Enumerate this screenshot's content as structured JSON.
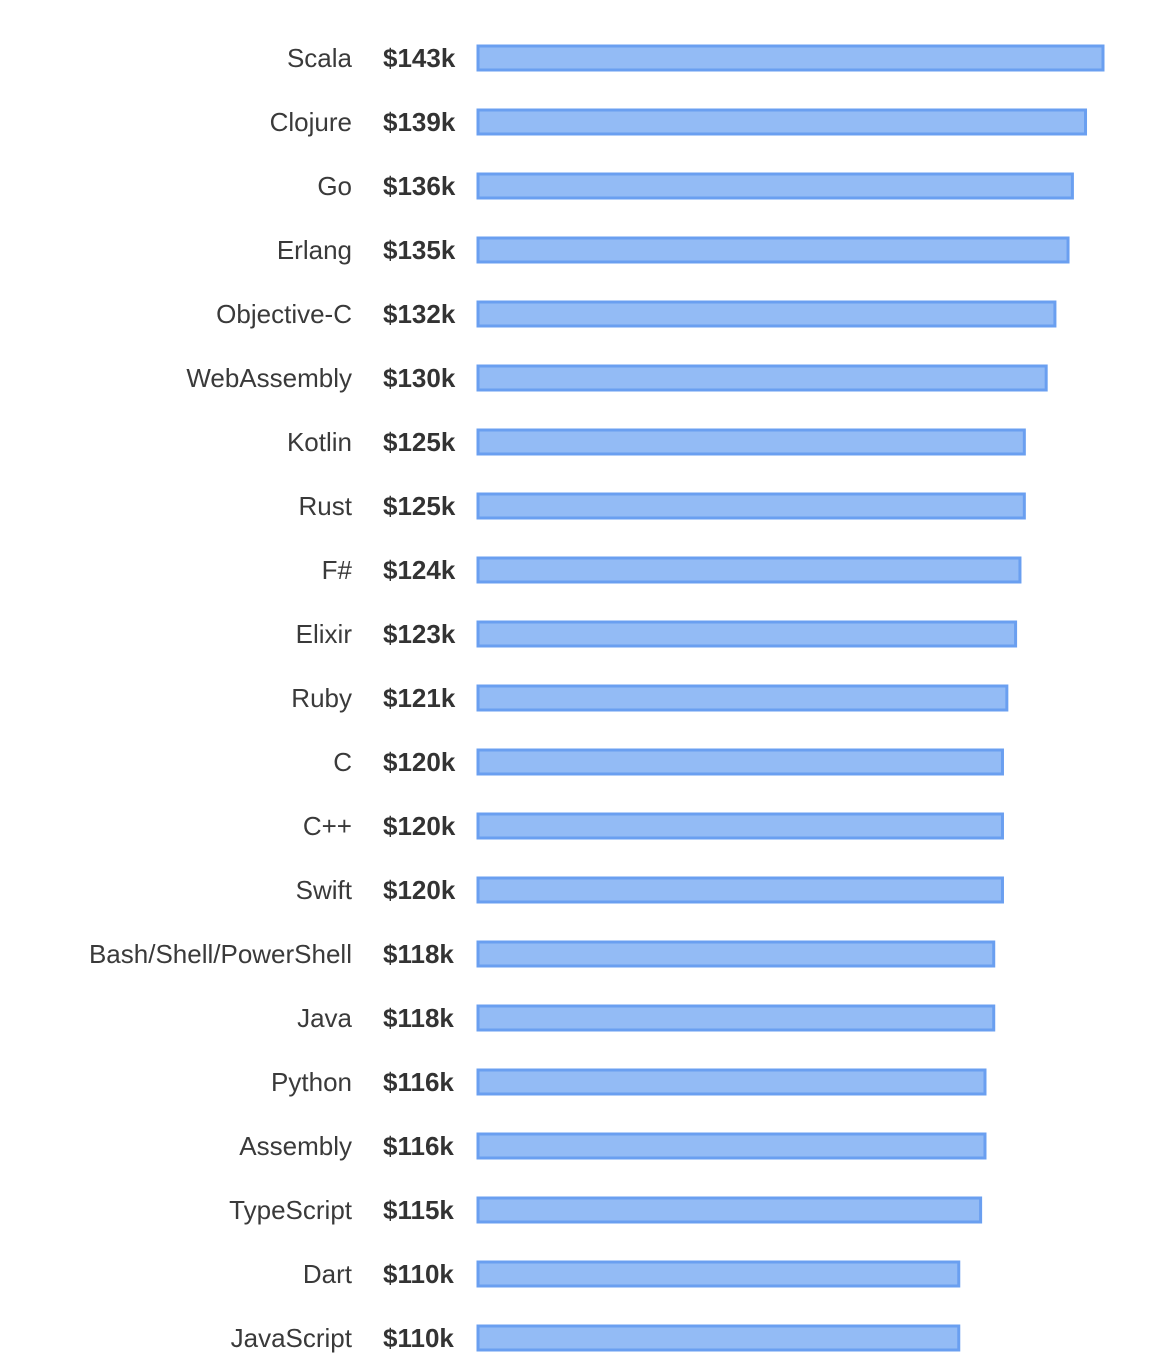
{
  "chart_data": {
    "type": "bar",
    "orientation": "horizontal",
    "title": "",
    "xlabel": "",
    "ylabel": "",
    "value_prefix": "$",
    "value_suffix": "k",
    "categories": [
      "Scala",
      "Clojure",
      "Go",
      "Erlang",
      "Objective-C",
      "WebAssembly",
      "Kotlin",
      "Rust",
      "F#",
      "Elixir",
      "Ruby",
      "C",
      "C++",
      "Swift",
      "Bash/Shell/PowerShell",
      "Java",
      "Python",
      "Assembly",
      "TypeScript",
      "Dart",
      "JavaScript"
    ],
    "values": [
      143,
      139,
      136,
      135,
      132,
      130,
      125,
      125,
      124,
      123,
      121,
      120,
      120,
      120,
      118,
      118,
      116,
      116,
      115,
      110,
      110
    ],
    "value_labels": [
      "$143k",
      "$139k",
      "$136k",
      "$135k",
      "$132k",
      "$130k",
      "$125k",
      "$125k",
      "$124k",
      "$123k",
      "$121k",
      "$120k",
      "$120k",
      "$120k",
      "$118k",
      "$118k",
      "$116k",
      "$116k",
      "$115k",
      "$110k",
      "$110k"
    ],
    "grid": false,
    "legend": "none"
  },
  "colors": {
    "bar_fill": "#93bbf5",
    "bar_stroke": "#6a9ff0",
    "category_text": "#3a3a3a",
    "value_text": "#333333"
  }
}
